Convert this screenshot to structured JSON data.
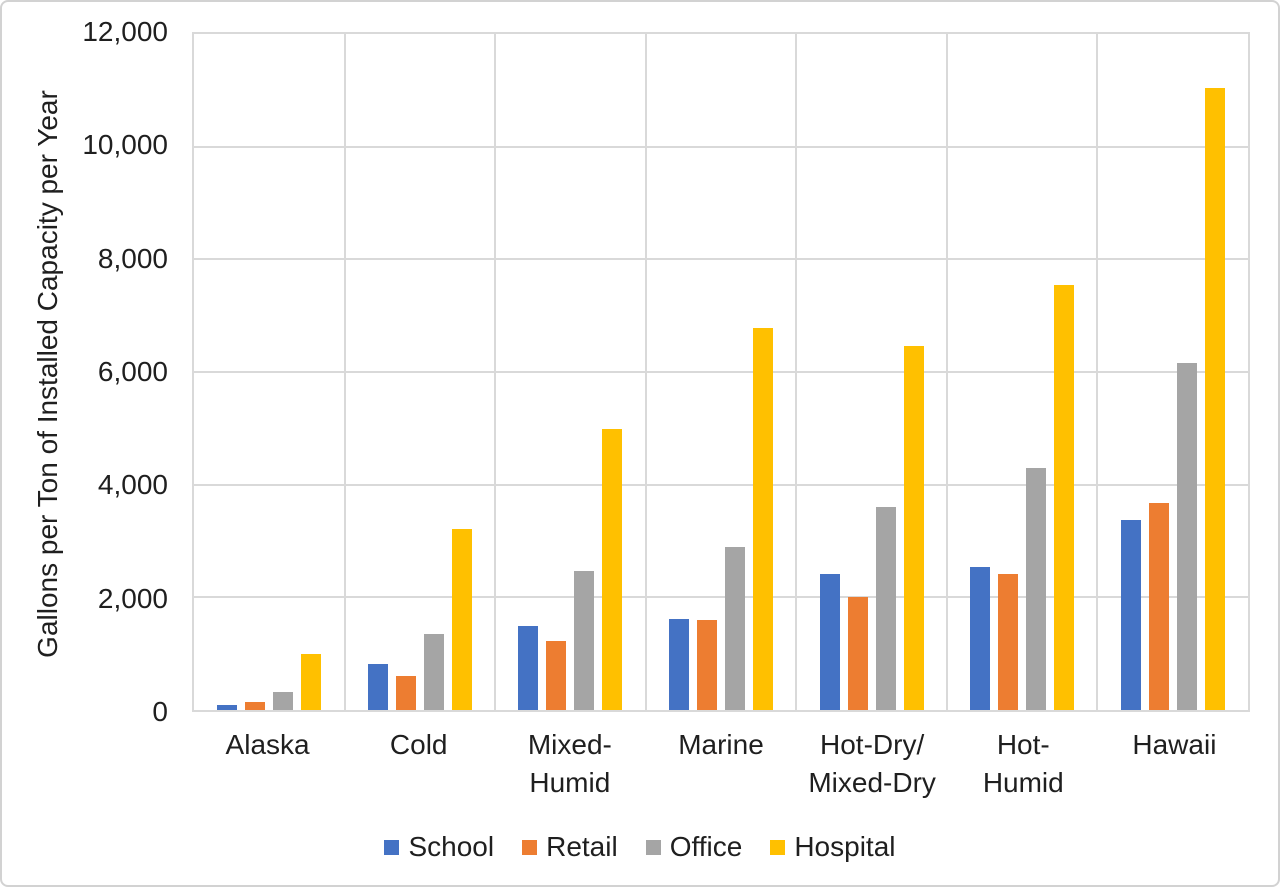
{
  "figure": {
    "background": "#ffffff",
    "border_color": "#d2d2d2",
    "text_color": "#1f1f1f",
    "gridline_color": "#d9d9d9"
  },
  "chart_data": {
    "type": "bar",
    "title": "",
    "xlabel": "",
    "ylabel": "Gallons per Ton of Installed Capacity per Year",
    "ylim": [
      0,
      12000
    ],
    "ytick_interval": 2000,
    "ytick_labels": [
      "0",
      "2,000",
      "4,000",
      "6,000",
      "8,000",
      "10,000",
      "12,000"
    ],
    "grid": "horizontal gridlines plus vertical category separators, light gray",
    "legend_position": "bottom-center",
    "categories": [
      "Alaska",
      "Cold",
      "Mixed-Humid",
      "Marine",
      "Hot-Dry/Mixed-Dry",
      "Hot-Humid",
      "Hawaii"
    ],
    "category_label_lines": [
      [
        "Alaska"
      ],
      [
        "Cold"
      ],
      [
        "Mixed-",
        "Humid"
      ],
      [
        "Marine"
      ],
      [
        "Hot-Dry/",
        "Mixed-Dry"
      ],
      [
        "Hot-",
        "Humid"
      ],
      [
        "Hawaii"
      ]
    ],
    "series": [
      {
        "name": "School",
        "color": "#4472C4",
        "values": [
          90,
          810,
          1500,
          1610,
          2420,
          2530,
          3380
        ]
      },
      {
        "name": "Retail",
        "color": "#ED7D31",
        "values": [
          140,
          600,
          1230,
          1600,
          2000,
          2420,
          3680
        ]
      },
      {
        "name": "Office",
        "color": "#A5A5A5",
        "values": [
          320,
          1350,
          2460,
          2900,
          3610,
          4290,
          6160
        ]
      },
      {
        "name": "Hospital",
        "color": "#FFC000",
        "values": [
          1000,
          3210,
          4980,
          6780,
          6460,
          7540,
          11040
        ]
      }
    ]
  }
}
